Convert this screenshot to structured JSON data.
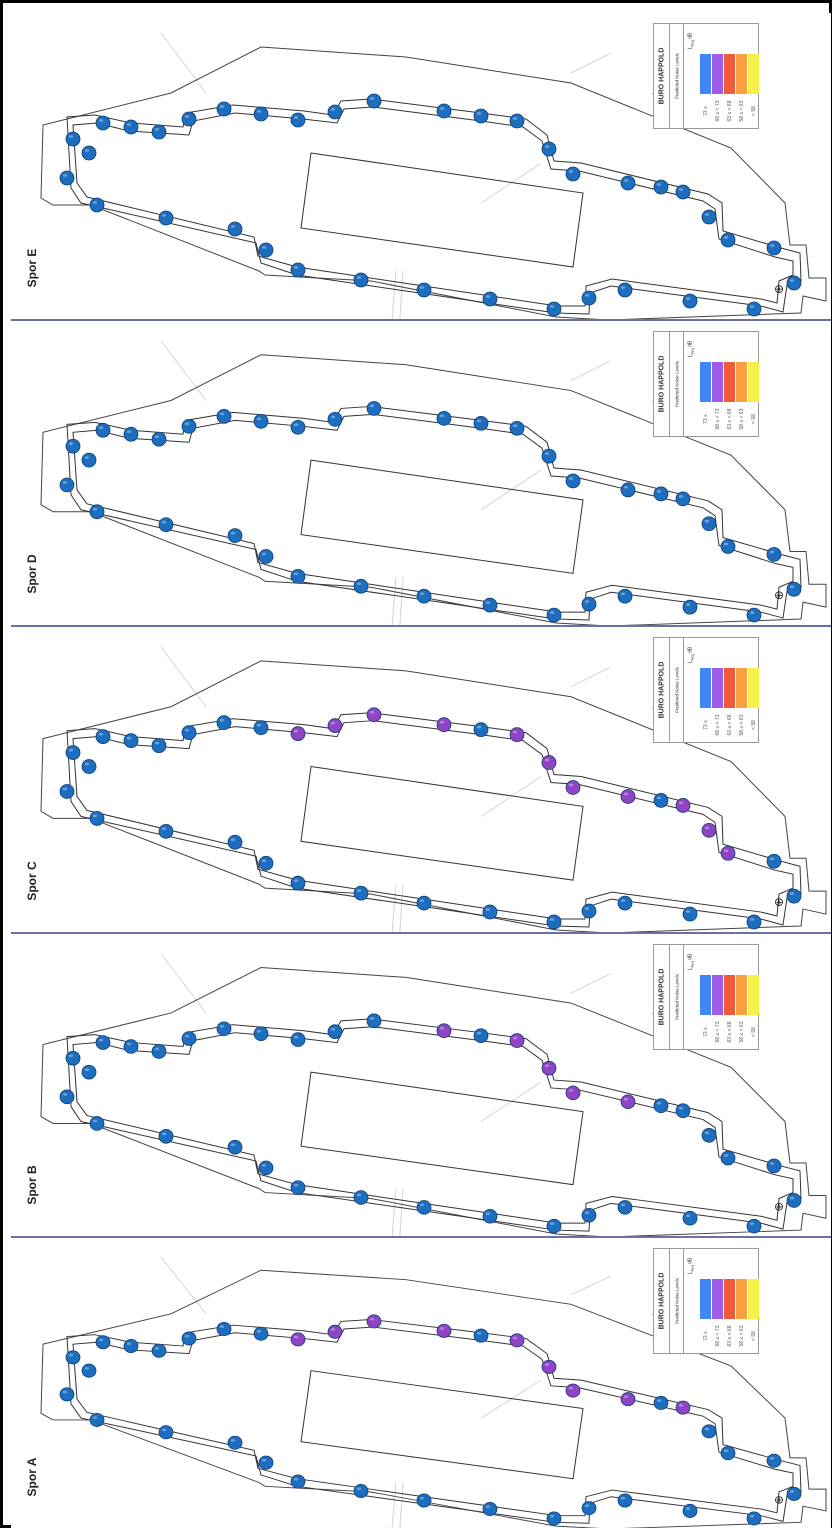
{
  "panels": [
    {
      "id": "E",
      "label": "Spor E",
      "dots": [
        "b",
        "b",
        "b",
        "b",
        "b",
        "b",
        "b",
        "b",
        "b",
        "b",
        "b",
        "b",
        "b",
        "b",
        "b",
        "b",
        "b",
        "b",
        "b",
        "b",
        "b",
        "b",
        "b",
        "b",
        "b",
        "b",
        "b",
        "b",
        "b",
        "b",
        "b",
        "b",
        "b",
        "b",
        "b",
        "b",
        "b"
      ]
    },
    {
      "id": "D",
      "label": "Spor D",
      "dots": [
        "b",
        "b",
        "b",
        "b",
        "b",
        "b",
        "b",
        "b",
        "b",
        "b",
        "b",
        "b",
        "b",
        "b",
        "b",
        "b",
        "b",
        "b",
        "b",
        "b",
        "b",
        "b",
        "b",
        "b",
        "b",
        "b",
        "b",
        "b",
        "b",
        "b",
        "b",
        "b",
        "b",
        "b",
        "b",
        "b",
        "b"
      ]
    },
    {
      "id": "C",
      "label": "Spor C",
      "dots": [
        "b",
        "b",
        "b",
        "b",
        "b",
        "p",
        "p",
        "p",
        "p",
        "p",
        "p",
        "p",
        "p",
        "p",
        "p",
        "p",
        "b",
        "b",
        "b",
        "b",
        "b",
        "b",
        "b",
        "b",
        "b",
        "b",
        "b",
        "b",
        "b",
        "b",
        "b",
        "b",
        "b",
        "b",
        "b",
        "b",
        "b"
      ]
    },
    {
      "id": "B",
      "label": "Spor B",
      "dots": [
        "b",
        "b",
        "b",
        "b",
        "b",
        "b",
        "b",
        "b",
        "p",
        "p",
        "p",
        "p",
        "p",
        "b",
        "b",
        "b",
        "b",
        "b",
        "b",
        "b",
        "b",
        "b",
        "b",
        "b",
        "b",
        "b",
        "b",
        "b",
        "b",
        "b",
        "b",
        "b",
        "b",
        "b",
        "b",
        "b",
        "b"
      ]
    },
    {
      "id": "A",
      "label": "Spor A",
      "dots": [
        "b",
        "b",
        "b",
        "b",
        "b",
        "p",
        "p",
        "p",
        "p",
        "p",
        "p",
        "p",
        "p",
        "p",
        "b",
        "b",
        "b",
        "b",
        "b",
        "b",
        "b",
        "b",
        "b",
        "b",
        "b",
        "b",
        "b",
        "b",
        "b",
        "b",
        "b",
        "b",
        "b",
        "b",
        "b",
        "b",
        "b"
      ]
    }
  ],
  "legend": {
    "brand": "BURO HAPPOLD",
    "title": "Predicted Noise Levels",
    "unit": "L",
    "unit_sub": "Aeq",
    "unit_db": "dB",
    "bands": [
      {
        "color": "#3f87f5",
        "range": "73 ≤"
      },
      {
        "color": "#a05ce6",
        "range": "68 ≤ < 73"
      },
      {
        "color": "#ef5a3a",
        "range": "63 ≤ < 68"
      },
      {
        "color": "#f7a043",
        "range": "58 ≤ < 63"
      },
      {
        "color": "#f6f04a",
        "range": "< 58"
      }
    ]
  },
  "receiver_colors": {
    "b": "#1e6ec0",
    "p": "#8e44c4"
  },
  "north_symbol": "⊕"
}
